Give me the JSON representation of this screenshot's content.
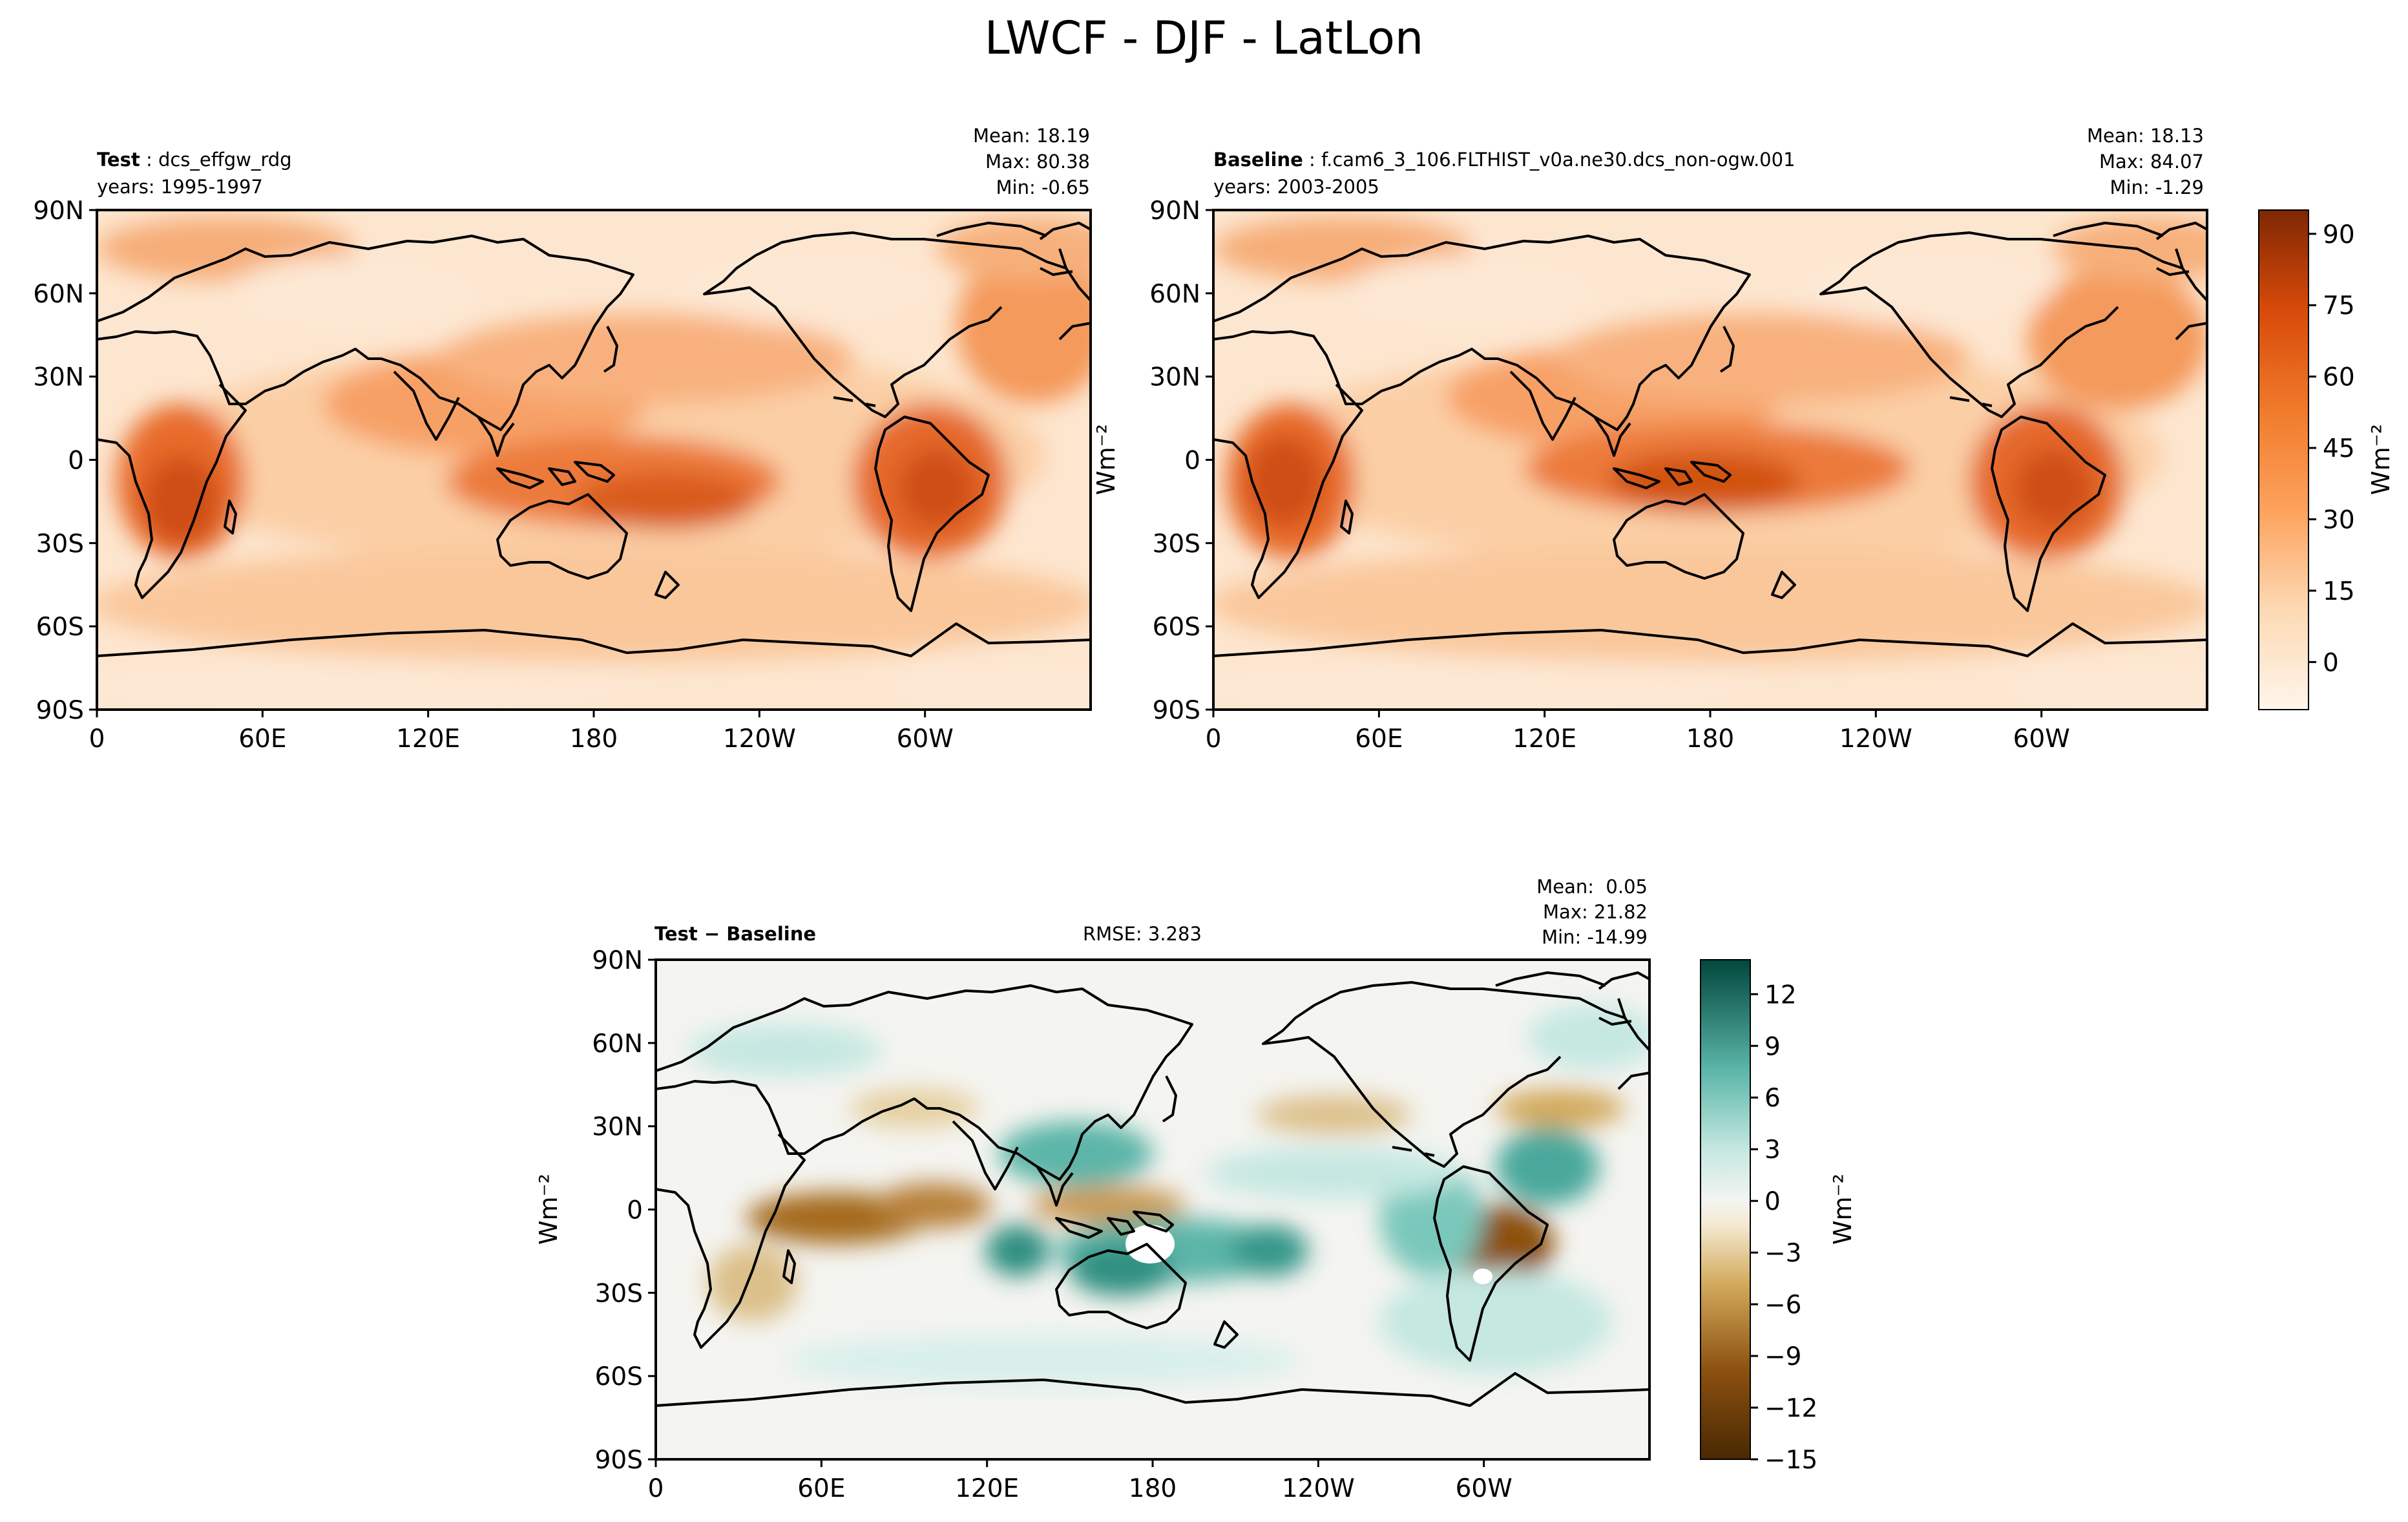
{
  "figure": {
    "title": "LWCF - DJF - LatLon"
  },
  "chart_data": [
    {
      "type": "heatmap",
      "panel": "test",
      "label": "Test",
      "case": "dcs_effgw_rdg",
      "years": "years: 1995-1997",
      "stats": {
        "mean": "Mean: 18.19",
        "max": "Max: 80.38",
        "min": "Min: -0.65"
      },
      "xlim": [
        0,
        360
      ],
      "ylim": [
        -90,
        90
      ],
      "x_ticks": [
        "0",
        "60E",
        "120E",
        "180",
        "120W",
        "60W"
      ],
      "y_ticks": [
        "90N",
        "60N",
        "30N",
        "0",
        "30S",
        "60S",
        "90S"
      ],
      "colormap": "Oranges"
    },
    {
      "type": "heatmap",
      "panel": "baseline",
      "label": "Baseline",
      "case": "f.cam6_3_106.FLTHIST_v0a.ne30.dcs_non-ogw.001",
      "years": "years: 2003-2005",
      "stats": {
        "mean": "Mean: 18.13",
        "max": "Max: 84.07",
        "min": "Min: -1.29"
      },
      "xlim": [
        0,
        360
      ],
      "ylim": [
        -90,
        90
      ],
      "x_ticks": [
        "0",
        "60E",
        "120E",
        "180",
        "120W",
        "60W"
      ],
      "y_ticks": [
        "90N",
        "60N",
        "30N",
        "0",
        "30S",
        "60S",
        "90S"
      ],
      "colormap": "Oranges",
      "colorbar": {
        "label": "Wm⁻²",
        "ticks": [
          "90",
          "75",
          "60",
          "45",
          "30",
          "15",
          "0"
        ],
        "tick_values": [
          90,
          75,
          60,
          45,
          30,
          15,
          0
        ],
        "range": [
          -10,
          95
        ]
      }
    },
    {
      "type": "heatmap",
      "panel": "diff",
      "label": "Test − Baseline",
      "rmse": "RMSE: 3.283",
      "stats": {
        "mean": "Mean:  0.05",
        "max": "Max: 21.82",
        "min": "Min: -14.99"
      },
      "xlim": [
        0,
        360
      ],
      "ylim": [
        -90,
        90
      ],
      "x_ticks": [
        "0",
        "60E",
        "120E",
        "180",
        "120W",
        "60W"
      ],
      "y_ticks": [
        "90N",
        "60N",
        "30N",
        "0",
        "30S",
        "60S",
        "90S"
      ],
      "colormap": "BrBG",
      "colorbar": {
        "label": "Wm⁻²",
        "ticks": [
          "12",
          "9",
          "6",
          "3",
          "0",
          "−3",
          "−6",
          "−9",
          "−12",
          "−15"
        ],
        "tick_values": [
          12,
          9,
          6,
          3,
          0,
          -3,
          -6,
          -9,
          -12,
          -15
        ],
        "range": [
          -15,
          14
        ]
      }
    }
  ],
  "ylabel_units": "Wm⁻²",
  "colors": {
    "orange_light": "#fdebd7",
    "orange_mid": "#f9b98a",
    "orange_dark": "#d9480f",
    "orange_max": "#7f2704",
    "teal_dark": "#01473c",
    "brown_dark": "#4a2803"
  }
}
